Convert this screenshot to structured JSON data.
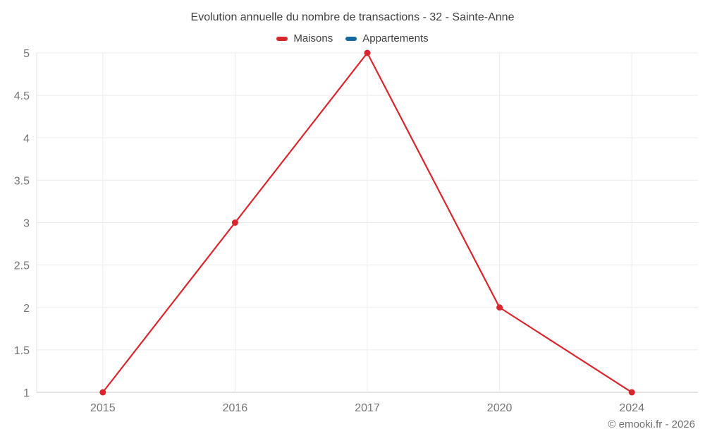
{
  "title": "Evolution annuelle du nombre de transactions - 32 - Sainte-Anne",
  "legend": {
    "items": [
      {
        "label": "Maisons",
        "color": "#d9262c"
      },
      {
        "label": "Appartements",
        "color": "#15699e"
      }
    ]
  },
  "footer": {
    "credit": "© emooki.fr - 2026"
  },
  "chart_data": {
    "type": "line",
    "title": "Evolution annuelle du nombre de transactions - 32 - Sainte-Anne",
    "categories": [
      "2015",
      "2016",
      "2017",
      "2020",
      "2024"
    ],
    "series": [
      {
        "name": "Maisons",
        "color": "#d9262c",
        "values": [
          1,
          3,
          5,
          2,
          1
        ]
      },
      {
        "name": "Appartements",
        "color": "#15699e",
        "values": []
      }
    ],
    "xlabel": "",
    "ylabel": "",
    "ylim": [
      1,
      5
    ],
    "yticks": [
      1,
      1.5,
      2,
      2.5,
      3,
      3.5,
      4,
      4.5,
      5
    ],
    "grid": true,
    "legend_position": "top",
    "colors": {
      "grid_line": "#ececec",
      "axis_line": "#c6c6c6",
      "left_border": "#e3e3e3",
      "tick_label": "#757575",
      "title_text": "#404040",
      "footer_text": "#6e6e6e"
    }
  }
}
